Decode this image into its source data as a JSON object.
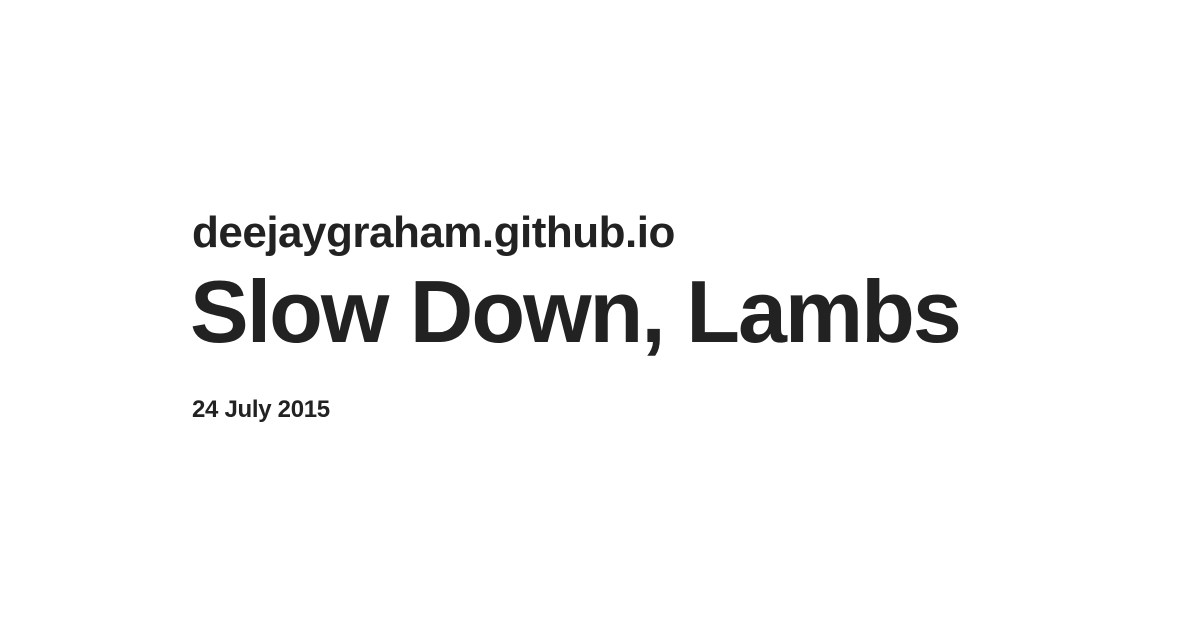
{
  "card": {
    "site": "deejaygraham.github.io",
    "title": "Slow Down, Lambs",
    "date": "24 July 2015"
  },
  "colors": {
    "background": "#ffffff",
    "text": "#222222"
  }
}
